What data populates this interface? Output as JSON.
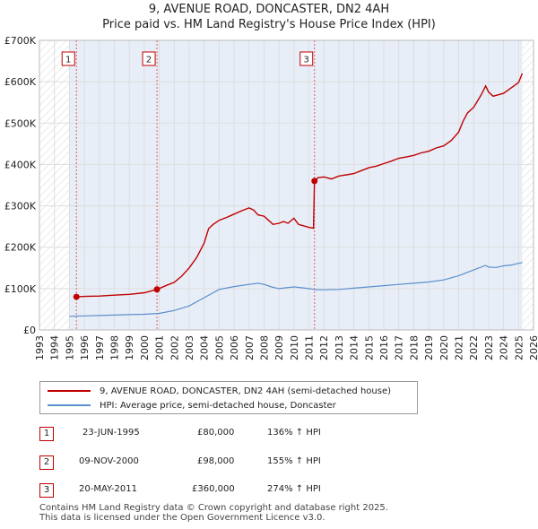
{
  "title": "9, AVENUE ROAD, DONCASTER, DN2 4AH",
  "subtitle": "Price paid vs. HM Land Registry's House Price Index (HPI)",
  "chart_data": {
    "type": "line",
    "xlim": [
      1993,
      2026
    ],
    "ylim": [
      0,
      700000
    ],
    "y_ticks": [
      0,
      100000,
      200000,
      300000,
      400000,
      500000,
      600000,
      700000
    ],
    "y_tick_labels": [
      "£0",
      "£100K",
      "£200K",
      "£300K",
      "£400K",
      "£500K",
      "£600K",
      "£700K"
    ],
    "x_ticks": [
      1993,
      1994,
      1995,
      1996,
      1997,
      1998,
      1999,
      2000,
      2001,
      2002,
      2003,
      2004,
      2005,
      2006,
      2007,
      2008,
      2009,
      2010,
      2011,
      2012,
      2013,
      2014,
      2015,
      2016,
      2017,
      2018,
      2019,
      2020,
      2021,
      2022,
      2023,
      2024,
      2025,
      2026
    ],
    "x_tick_labels": [
      "1993",
      "1994",
      "1995",
      "1996",
      "1997",
      "1998",
      "1999",
      "2000",
      "2001",
      "2002",
      "2003",
      "2004",
      "2005",
      "2006",
      "2007",
      "2008",
      "2009",
      "2010",
      "2011",
      "2012",
      "2013",
      "2014",
      "2015",
      "2016",
      "2017",
      "2018",
      "2019",
      "2020",
      "2021",
      "2022",
      "2023",
      "2024",
      "2025",
      "2026"
    ],
    "grid": true,
    "data_range": [
      1995.0,
      2025.25
    ],
    "series": [
      {
        "name": "9, AVENUE ROAD, DONCASTER, DN2 4AH (semi-detached house)",
        "color": "#c00000",
        "x": [
          1995.47,
          1996,
          1997,
          1998,
          1999,
          2000,
          2000.85,
          2001.5,
          2002,
          2002.5,
          2003,
          2003.5,
          2004,
          2004.3,
          2004.6,
          2005,
          2005.5,
          2006,
          2006.5,
          2007,
          2007.3,
          2007.6,
          2008,
          2008.3,
          2008.6,
          2009,
          2009.3,
          2009.6,
          2010,
          2010.3,
          2010.6,
          2011,
          2011.3,
          2011.37,
          2011.6,
          2012,
          2012.5,
          2013,
          2013.5,
          2014,
          2014.5,
          2015,
          2015.5,
          2016,
          2016.5,
          2017,
          2017.5,
          2018,
          2018.5,
          2019,
          2019.5,
          2020,
          2020.5,
          2021,
          2021.3,
          2021.6,
          2022,
          2022.5,
          2022.8,
          2023,
          2023.3,
          2023.6,
          2024,
          2024.5,
          2025,
          2025.25
        ],
        "values": [
          80000,
          81000,
          82000,
          84000,
          86000,
          90000,
          98000,
          108000,
          115000,
          130000,
          150000,
          175000,
          210000,
          245000,
          255000,
          265000,
          272000,
          280000,
          288000,
          295000,
          290000,
          278000,
          275000,
          265000,
          255000,
          258000,
          262000,
          258000,
          270000,
          255000,
          252000,
          248000,
          246000,
          360000,
          368000,
          370000,
          365000,
          372000,
          375000,
          378000,
          385000,
          392000,
          396000,
          402000,
          408000,
          415000,
          418000,
          422000,
          428000,
          432000,
          440000,
          445000,
          458000,
          478000,
          505000,
          525000,
          538000,
          568000,
          590000,
          575000,
          565000,
          568000,
          572000,
          585000,
          598000,
          620000
        ]
      },
      {
        "name": "HPI: Average price, semi-detached house, Doncaster",
        "color": "#5a8fcd",
        "x": [
          1995.0,
          1996,
          1997,
          1998,
          1999,
          2000,
          2001,
          2002,
          2003,
          2004,
          2005,
          2006,
          2007,
          2007.6,
          2008,
          2008.5,
          2009,
          2009.5,
          2010,
          2010.5,
          2011,
          2011.5,
          2012,
          2013,
          2014,
          2015,
          2016,
          2017,
          2018,
          2019,
          2020,
          2021,
          2022,
          2022.8,
          2023,
          2023.5,
          2024,
          2024.5,
          2025,
          2025.25
        ],
        "values": [
          33000,
          34000,
          35000,
          36000,
          37000,
          38000,
          40000,
          47000,
          58000,
          78000,
          98000,
          105000,
          110000,
          113000,
          110000,
          104000,
          100000,
          102000,
          104000,
          102000,
          100000,
          97000,
          97000,
          98000,
          101000,
          104000,
          107000,
          110000,
          113000,
          116000,
          121000,
          131000,
          145000,
          156000,
          152000,
          151000,
          155000,
          157000,
          161000,
          163000
        ]
      }
    ],
    "sales": [
      {
        "label": "1",
        "x": 1995.47,
        "price": 80000
      },
      {
        "label": "2",
        "x": 2000.85,
        "price": 98000
      },
      {
        "label": "3",
        "x": 2011.37,
        "price": 360000
      }
    ]
  },
  "legend": {
    "property": "9, AVENUE ROAD, DONCASTER, DN2 4AH (semi-detached house)",
    "hpi": "HPI: Average price, semi-detached house, Doncaster"
  },
  "transactions": [
    {
      "num": "1",
      "date": "23-JUN-1995",
      "price": "£80,000",
      "hpi": "136% ↑ HPI"
    },
    {
      "num": "2",
      "date": "09-NOV-2000",
      "price": "£98,000",
      "hpi": "155% ↑ HPI"
    },
    {
      "num": "3",
      "date": "20-MAY-2011",
      "price": "£360,000",
      "hpi": "274% ↑ HPI"
    }
  ],
  "footer": {
    "line1": "Contains HM Land Registry data © Crown copyright and database right 2025.",
    "line2": "This data is licensed under the Open Government Licence v3.0."
  }
}
